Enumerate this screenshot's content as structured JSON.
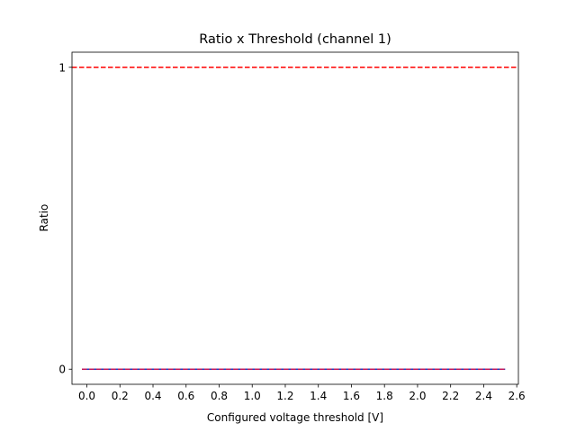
{
  "chart_data": {
    "type": "line",
    "title": "Ratio x Threshold (channel 1)",
    "xlabel": "Configured voltage threshold [V]",
    "ylabel": "Ratio",
    "xlim": [
      -0.09,
      2.61
    ],
    "ylim": [
      -0.05,
      1.05
    ],
    "xticks": [
      0.0,
      0.2,
      0.4,
      0.6,
      0.8,
      1.0,
      1.2,
      1.4,
      1.6,
      1.8,
      2.0,
      2.2,
      2.4,
      2.6
    ],
    "xtick_labels": [
      "0.0",
      "0.2",
      "0.4",
      "0.6",
      "0.8",
      "1.0",
      "1.2",
      "1.4",
      "1.6",
      "1.8",
      "2.0",
      "2.2",
      "2.4",
      "2.6"
    ],
    "yticks": [
      0,
      1
    ],
    "ytick_labels": [
      "0",
      "1"
    ],
    "grid": false,
    "series": [
      {
        "style": "solid",
        "color": "#1f3fbf",
        "x": [
          -0.03,
          2.53
        ],
        "y": [
          0,
          0
        ]
      },
      {
        "style": "dashed",
        "color": "#c2185b",
        "x": [
          -0.03,
          2.53
        ],
        "y": [
          0,
          0
        ]
      }
    ],
    "reference_lines": [
      {
        "orientation": "horizontal",
        "y": 1,
        "style": "dashed",
        "color": "#ff0000"
      }
    ]
  }
}
